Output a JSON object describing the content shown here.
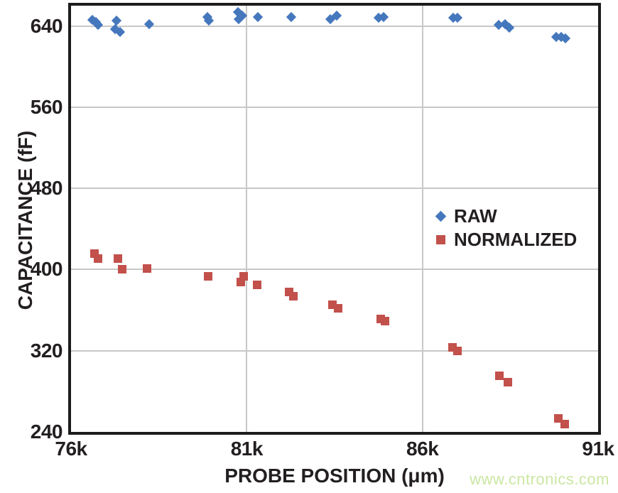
{
  "chart_data": {
    "type": "scatter",
    "title": "",
    "xlabel": "PROBE POSITION (μm)",
    "ylabel": "CAPACITANCE (fF)",
    "xlim": [
      76000,
      91000
    ],
    "ylim": [
      240,
      660
    ],
    "grid": true,
    "legend_position": "inside-right-middle",
    "x_ticks": [
      {
        "value": 76000,
        "label": "76k"
      },
      {
        "value": 81000,
        "label": "81k"
      },
      {
        "value": 86000,
        "label": "86k"
      },
      {
        "value": 91000,
        "label": "91k"
      }
    ],
    "y_ticks": [
      {
        "value": 240,
        "label": "240"
      },
      {
        "value": 320,
        "label": "320"
      },
      {
        "value": 400,
        "label": "400"
      },
      {
        "value": 480,
        "label": "480"
      },
      {
        "value": 560,
        "label": "560"
      },
      {
        "value": 640,
        "label": "640"
      }
    ],
    "x_gridlines": [
      81000,
      86000
    ],
    "y_gridlines": [
      320,
      400,
      480,
      560,
      640
    ],
    "series": [
      {
        "name": "RAW",
        "marker": "diamond",
        "color": "#4577bd",
        "points": [
          [
            76600,
            646
          ],
          [
            76700,
            644
          ],
          [
            76760,
            641
          ],
          [
            77290,
            645
          ],
          [
            77250,
            637
          ],
          [
            77390,
            634
          ],
          [
            78220,
            642
          ],
          [
            79890,
            649
          ],
          [
            79920,
            645
          ],
          [
            80750,
            654
          ],
          [
            80870,
            650
          ],
          [
            80780,
            647
          ],
          [
            81310,
            649
          ],
          [
            82260,
            649
          ],
          [
            83370,
            647
          ],
          [
            83570,
            650
          ],
          [
            84760,
            648
          ],
          [
            84890,
            649
          ],
          [
            86870,
            648
          ],
          [
            87000,
            648
          ],
          [
            88160,
            641
          ],
          [
            88350,
            642
          ],
          [
            88480,
            638
          ],
          [
            89810,
            629
          ],
          [
            89950,
            629
          ],
          [
            90080,
            628
          ]
        ]
      },
      {
        "name": "NORMALIZED",
        "marker": "square",
        "color": "#c2504b",
        "points": [
          [
            76670,
            416
          ],
          [
            76770,
            411
          ],
          [
            77330,
            411
          ],
          [
            77450,
            400
          ],
          [
            78170,
            401
          ],
          [
            79910,
            393
          ],
          [
            80830,
            388
          ],
          [
            80910,
            393
          ],
          [
            81300,
            385
          ],
          [
            82210,
            378
          ],
          [
            82330,
            374
          ],
          [
            83430,
            365
          ],
          [
            83610,
            362
          ],
          [
            84810,
            351
          ],
          [
            84930,
            349
          ],
          [
            86860,
            323
          ],
          [
            86990,
            320
          ],
          [
            88180,
            295
          ],
          [
            88440,
            289
          ],
          [
            89870,
            253
          ],
          [
            90050,
            248
          ]
        ]
      }
    ],
    "colors": {
      "grid": "#c7c7c7",
      "axis": "#1c1c1c",
      "text": "#231f20"
    }
  },
  "watermark": {
    "text": "www.cntronics.com",
    "color": "#cbe7a3"
  }
}
